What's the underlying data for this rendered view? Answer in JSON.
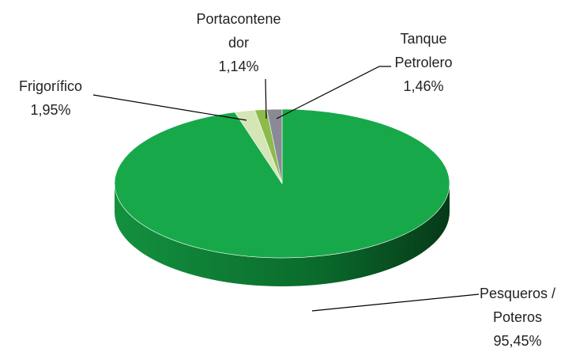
{
  "chart_data": {
    "type": "pie",
    "categories": [
      "Pesqueros / Poteros",
      "Frigorífico",
      "Portacontenedor",
      "Tanque Petrolero"
    ],
    "values": [
      95.45,
      1.95,
      1.14,
      1.46
    ],
    "value_labels": [
      "95,45%",
      "1,95%",
      "1,14%",
      "1,46%"
    ],
    "colors": [
      "#17a84a",
      "#d4e6b5",
      "#8cbb4c",
      "#8a8a96"
    ]
  }
}
